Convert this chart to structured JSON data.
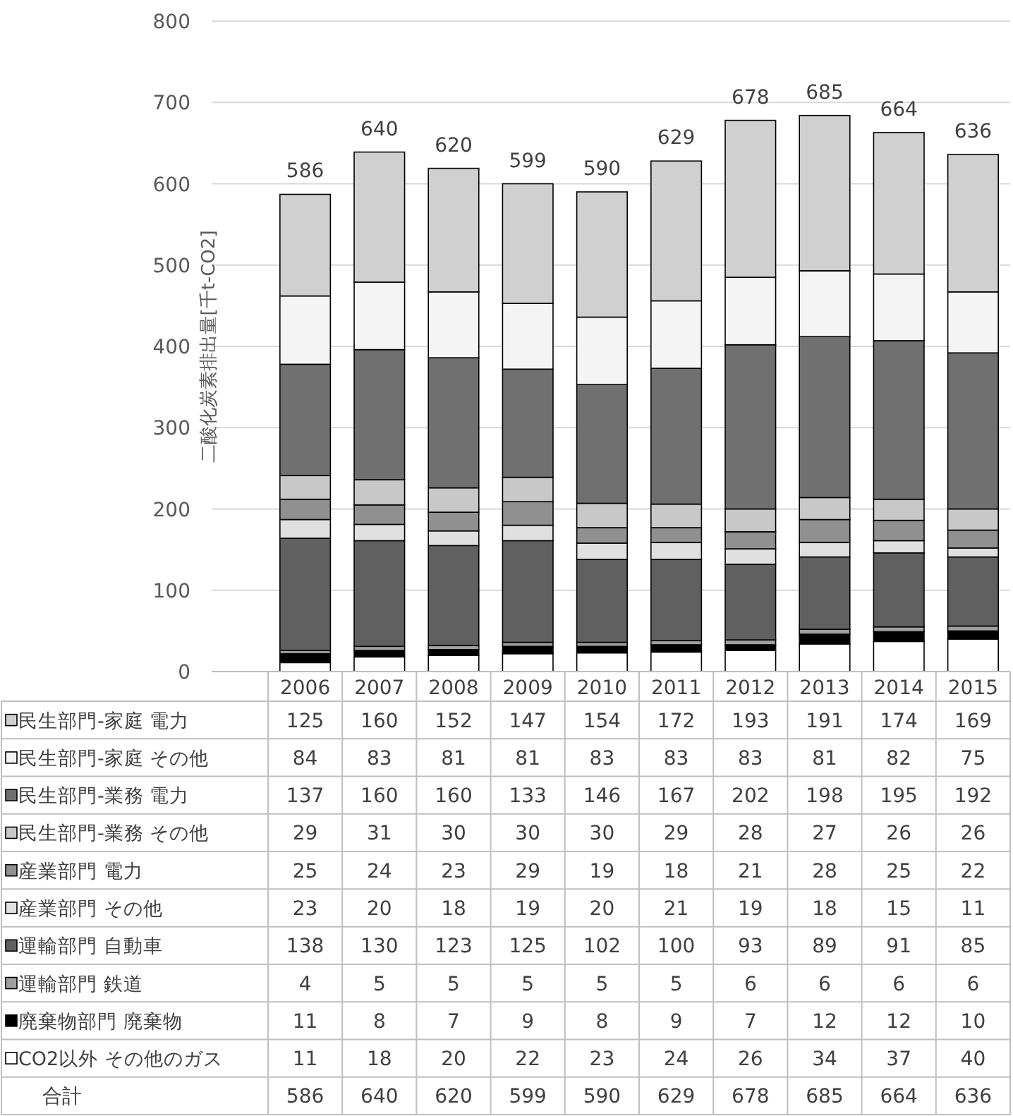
{
  "chart_data": {
    "type": "bar",
    "stacked": true,
    "ylabel": "二酸化炭素排出量[千t-CO2]",
    "categories": [
      "2006",
      "2007",
      "2008",
      "2009",
      "2010",
      "2011",
      "2012",
      "2013",
      "2014",
      "2015"
    ],
    "ylim": [
      0,
      800
    ],
    "yticks": [
      0,
      100,
      200,
      300,
      400,
      500,
      600,
      700,
      800
    ],
    "grid": "y",
    "legend": "bottom",
    "data_labels": true,
    "totals": [
      "586",
      "640",
      "620",
      "599",
      "590",
      "629",
      "678",
      "685",
      "664",
      "636"
    ],
    "annotations": [
      "合計"
    ],
    "series": [
      {
        "name": "CO2以外 その他のガス",
        "color": "#ffffff",
        "values": [
          11,
          18,
          20,
          22,
          23,
          24,
          26,
          34,
          37,
          40
        ]
      },
      {
        "name": "廃棄物部門 廃棄物",
        "color": "#000000",
        "values": [
          11,
          8,
          7,
          9,
          8,
          9,
          7,
          12,
          12,
          10
        ]
      },
      {
        "name": "運輸部門 鉄道",
        "color": "#a0a0a0",
        "values": [
          4,
          5,
          5,
          5,
          5,
          5,
          6,
          6,
          6,
          6
        ]
      },
      {
        "name": "運輸部門 自動車",
        "color": "#606060",
        "values": [
          138,
          130,
          123,
          125,
          102,
          100,
          93,
          89,
          91,
          85
        ]
      },
      {
        "name": "産業部門 その他",
        "color": "#e0e0e0",
        "values": [
          23,
          20,
          18,
          19,
          20,
          21,
          19,
          18,
          15,
          11
        ]
      },
      {
        "name": "産業部門 電力",
        "color": "#909090",
        "values": [
          25,
          24,
          23,
          29,
          19,
          18,
          21,
          28,
          25,
          22
        ]
      },
      {
        "name": "民生部門-業務 その他",
        "color": "#c8c8c8",
        "values": [
          29,
          31,
          30,
          30,
          30,
          29,
          28,
          27,
          26,
          26
        ]
      },
      {
        "name": "民生部門-業務 電力",
        "color": "#707070",
        "values": [
          137,
          160,
          160,
          133,
          146,
          167,
          202,
          198,
          195,
          192
        ]
      },
      {
        "name": "民生部門-家庭 その他",
        "color": "#f4f4f4",
        "values": [
          84,
          83,
          81,
          81,
          83,
          83,
          83,
          81,
          82,
          75
        ]
      },
      {
        "name": "民生部門-家庭 電力",
        "color": "#d0d0d0",
        "values": [
          125,
          160,
          152,
          147,
          154,
          172,
          193,
          191,
          174,
          169
        ]
      }
    ]
  }
}
